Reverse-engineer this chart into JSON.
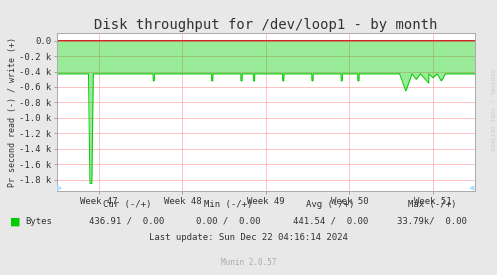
{
  "title": "Disk throughput for /dev/loop1 - by month",
  "ylabel": "Pr second read (-) / write (+)",
  "bg_color": "#e8e8e8",
  "plot_bg_color": "#ffffff",
  "grid_color": "#ffaaaa",
  "border_color": "#aaaaaa",
  "line_color": "#00cc00",
  "fill_color": "#00cc00",
  "top_line_color": "#cc0000",
  "yticks": [
    0.0,
    -0.2,
    -0.4,
    -0.6,
    -0.8,
    -1.0,
    -1.2,
    -1.4,
    -1.6,
    -1.8
  ],
  "ytick_labels": [
    "0.0",
    "-0.2 k",
    "-0.4 k",
    "-0.6 k",
    "-0.8 k",
    "-1.0 k",
    "-1.2 k",
    "-1.4 k",
    "-1.6 k",
    "-1.8 k"
  ],
  "ylim": [
    -1.95,
    0.1
  ],
  "xlim": [
    0,
    100
  ],
  "xtick_positions": [
    10,
    30,
    50,
    70,
    90
  ],
  "xtick_labels": [
    "Week 47",
    "Week 48",
    "Week 49",
    "Week 50",
    "Week 51"
  ],
  "legend_label": "Bytes",
  "cur_neg": "436.91",
  "cur_pos": "0.00",
  "min_neg": "0.00",
  "min_pos": "0.00",
  "avg_neg": "441.54",
  "avg_pos": "0.00",
  "max_neg": "33.79k",
  "max_pos": "0.00",
  "last_update": "Last update: Sun Dec 22 04:16:14 2024",
  "munin_label": "Munin 2.0.57",
  "rrdtool_label": "RRDTOOL / TOBI OETIKER",
  "title_fontsize": 10,
  "label_fontsize": 6.5,
  "tick_fontsize": 6.5,
  "legend_fontsize": 6.5
}
